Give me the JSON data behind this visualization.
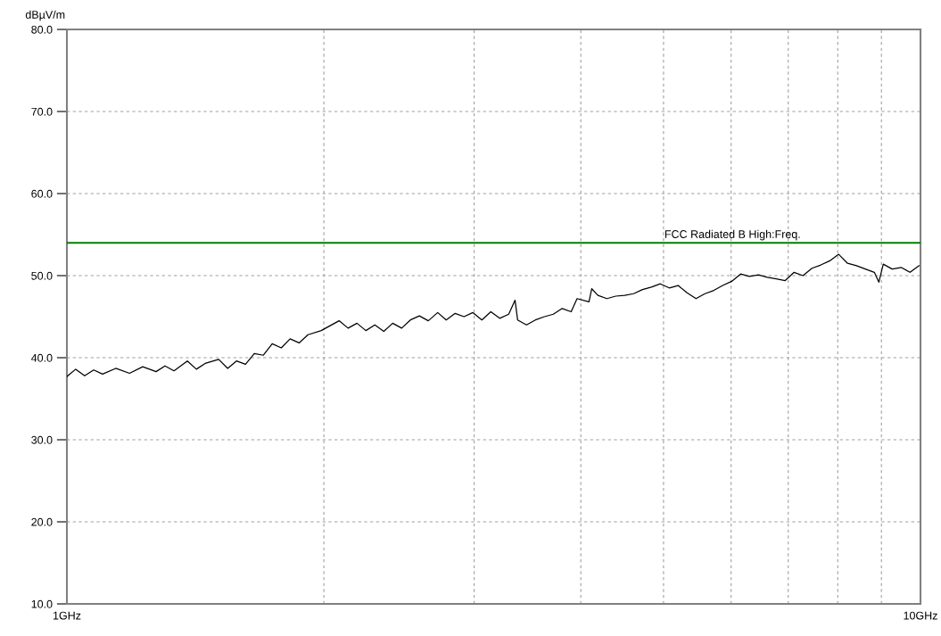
{
  "chart_data": {
    "type": "line",
    "ylabel": "dBµV/m",
    "log": "x",
    "grid": true,
    "xlim": [
      1,
      10
    ],
    "ylim": [
      10,
      80
    ],
    "xticks": [
      {
        "value": 1,
        "label": "1GHz"
      },
      {
        "value": 2,
        "label": null
      },
      {
        "value": 3,
        "label": null
      },
      {
        "value": 4,
        "label": null
      },
      {
        "value": 5,
        "label": null
      },
      {
        "value": 6,
        "label": null
      },
      {
        "value": 7,
        "label": null
      },
      {
        "value": 8,
        "label": null
      },
      {
        "value": 9,
        "label": null
      },
      {
        "value": 10,
        "label": "10GHz"
      }
    ],
    "yticks": [
      {
        "value": 10,
        "label": "10.0"
      },
      {
        "value": 20,
        "label": "20.0"
      },
      {
        "value": 30,
        "label": "30.0"
      },
      {
        "value": 40,
        "label": "40.0"
      },
      {
        "value": 50,
        "label": "50.0"
      },
      {
        "value": 60,
        "label": "60.0"
      },
      {
        "value": 70,
        "label": "70.0"
      },
      {
        "value": 80,
        "label": "80.0"
      }
    ],
    "ref_lines": [
      {
        "axis": "y",
        "value": 54,
        "label": "FCC Radiated B High:Freq.",
        "color": "#008000",
        "line_style": "solid"
      }
    ],
    "series": [
      {
        "color": "#000000",
        "x": [
          1.0,
          1.024,
          1.049,
          1.075,
          1.101,
          1.141,
          1.184,
          1.227,
          1.272,
          1.303,
          1.335,
          1.384,
          1.418,
          1.452,
          1.506,
          1.543,
          1.58,
          1.619,
          1.658,
          1.699,
          1.74,
          1.783,
          1.826,
          1.871,
          1.916,
          1.986,
          2.034,
          2.084,
          2.135,
          2.187,
          2.24,
          2.295,
          2.351,
          2.408,
          2.467,
          2.526,
          2.588,
          2.651,
          2.719,
          2.782,
          2.85,
          2.919,
          2.99,
          3.063,
          3.138,
          3.214,
          3.293,
          3.35,
          3.373,
          3.455,
          3.539,
          3.626,
          3.714,
          3.804,
          3.897,
          3.96,
          4.089,
          4.12,
          4.189,
          4.291,
          4.395,
          4.502,
          4.612,
          4.724,
          4.839,
          4.957,
          5.078,
          5.201,
          5.328,
          5.458,
          5.591,
          5.727,
          5.866,
          6.009,
          6.155,
          6.305,
          6.459,
          6.616,
          6.777,
          6.942,
          7.111,
          7.284,
          7.461,
          7.643,
          7.829,
          8.02,
          8.215,
          8.415,
          8.62,
          8.83,
          8.937,
          9.045,
          9.265,
          9.491,
          9.722,
          9.959
        ],
        "values": [
          37.7,
          38.6,
          37.8,
          38.5,
          38.0,
          38.7,
          38.1,
          38.9,
          38.3,
          39.0,
          38.4,
          39.6,
          38.6,
          39.3,
          39.8,
          38.7,
          39.6,
          39.2,
          40.5,
          40.3,
          41.7,
          41.2,
          42.3,
          41.8,
          42.8,
          43.3,
          43.9,
          44.5,
          43.6,
          44.2,
          43.3,
          44.0,
          43.2,
          44.2,
          43.6,
          44.6,
          45.1,
          44.5,
          45.5,
          44.6,
          45.4,
          45.0,
          45.5,
          44.6,
          45.6,
          44.8,
          45.3,
          47.0,
          44.6,
          44.0,
          44.6,
          45.0,
          45.3,
          46.0,
          45.6,
          47.2,
          46.8,
          48.4,
          47.6,
          47.2,
          47.5,
          47.6,
          47.8,
          48.3,
          48.6,
          49.0,
          48.5,
          48.8,
          47.9,
          47.2,
          47.8,
          48.2,
          48.8,
          49.3,
          50.2,
          49.9,
          50.1,
          49.8,
          49.6,
          49.4,
          50.4,
          50.0,
          50.9,
          51.3,
          51.8,
          52.6,
          51.5,
          51.2,
          50.8,
          50.4,
          49.2,
          51.4,
          50.8,
          51.0,
          50.4,
          51.2
        ]
      }
    ]
  }
}
